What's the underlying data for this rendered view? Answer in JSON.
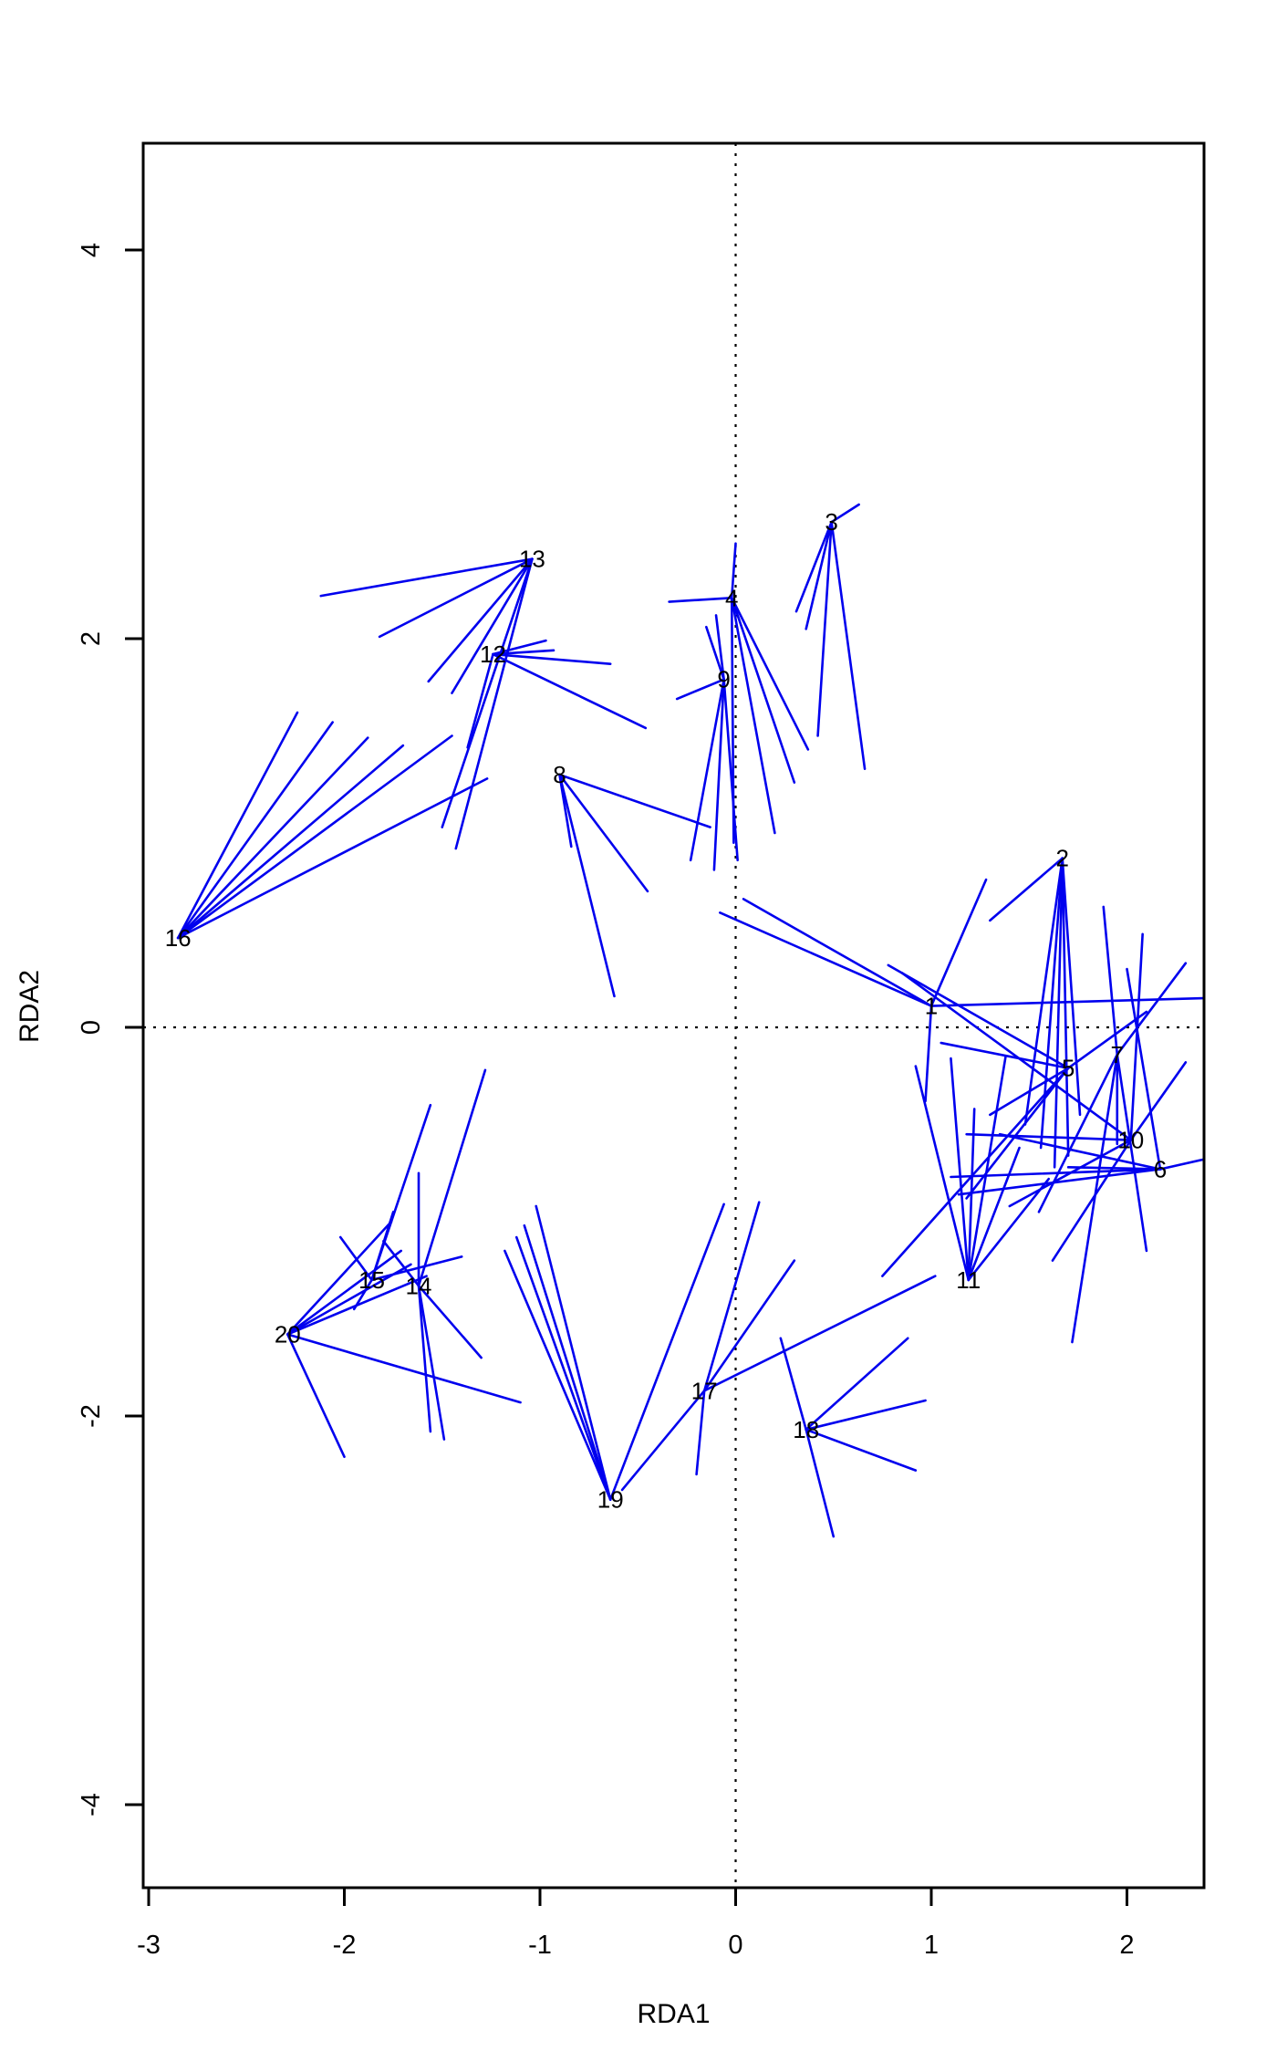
{
  "chart_data": {
    "type": "scatter",
    "subtype": "ordination-spider-plot",
    "title": "",
    "xlabel": "RDA1",
    "ylabel": "RDA2",
    "xlim": [
      -3.03,
      2.39
    ],
    "ylim": [
      -4.43,
      4.55
    ],
    "x_ticks": [
      -3,
      -2,
      -1,
      0,
      1,
      2
    ],
    "y_ticks": [
      -4,
      -2,
      0,
      2,
      4
    ],
    "grid": false,
    "reference_lines": {
      "horizontal_y": 0,
      "vertical_x": 0,
      "style": "dotted",
      "color": "#000000"
    },
    "line_color": "#0000EE",
    "label_color": "#000000",
    "frame_color": "#000000",
    "centroids": [
      {
        "id": "1",
        "x": 1.0,
        "y": 0.11,
        "legs": [
          [
            -0.08,
            0.59
          ],
          [
            0.04,
            0.66
          ],
          [
            1.28,
            0.76
          ],
          [
            0.97,
            -0.38
          ],
          [
            2.39,
            0.15
          ]
        ]
      },
      {
        "id": "2",
        "x": 1.67,
        "y": 0.87,
        "legs": [
          [
            1.48,
            -0.5
          ],
          [
            1.56,
            -0.62
          ],
          [
            1.63,
            -0.72
          ],
          [
            1.7,
            -0.66
          ],
          [
            1.76,
            -0.45
          ],
          [
            1.3,
            0.55
          ]
        ]
      },
      {
        "id": "3",
        "x": 0.49,
        "y": 2.6,
        "legs": [
          [
            0.63,
            2.69
          ],
          [
            0.31,
            2.14
          ],
          [
            0.36,
            2.05
          ],
          [
            0.42,
            1.5
          ],
          [
            0.66,
            1.33
          ]
        ]
      },
      {
        "id": "4",
        "x": -0.02,
        "y": 2.21,
        "legs": [
          [
            -0.34,
            2.19
          ],
          [
            0.0,
            2.49
          ],
          [
            0.37,
            1.43
          ],
          [
            0.3,
            1.26
          ],
          [
            0.2,
            1.0
          ],
          [
            -0.01,
            0.95
          ]
        ]
      },
      {
        "id": "5",
        "x": 1.7,
        "y": -0.21,
        "legs": [
          [
            0.78,
            0.32
          ],
          [
            1.05,
            -0.08
          ],
          [
            1.3,
            -0.45
          ],
          [
            1.18,
            -0.88
          ],
          [
            0.75,
            -1.28
          ],
          [
            2.1,
            0.08
          ]
        ]
      },
      {
        "id": "6",
        "x": 2.17,
        "y": -0.73,
        "legs": [
          [
            1.1,
            -0.77
          ],
          [
            1.14,
            -0.86
          ],
          [
            1.35,
            -0.55
          ],
          [
            2.39,
            -0.68
          ],
          [
            1.7,
            -0.72
          ],
          [
            2.0,
            0.3
          ]
        ]
      },
      {
        "id": "7",
        "x": 1.95,
        "y": -0.14,
        "legs": [
          [
            1.88,
            0.62
          ],
          [
            2.3,
            0.33
          ],
          [
            2.1,
            -1.15
          ],
          [
            1.72,
            -1.62
          ],
          [
            1.55,
            -0.95
          ],
          [
            1.95,
            -0.6
          ]
        ]
      },
      {
        "id": "8",
        "x": -0.9,
        "y": 1.3,
        "legs": [
          [
            -0.62,
            0.16
          ],
          [
            -0.84,
            0.93
          ],
          [
            -0.13,
            1.03
          ],
          [
            -0.45,
            0.7
          ]
        ]
      },
      {
        "id": "9",
        "x": -0.06,
        "y": 1.79,
        "legs": [
          [
            -0.3,
            1.69
          ],
          [
            -0.23,
            0.86
          ],
          [
            -0.11,
            0.81
          ],
          [
            0.01,
            0.86
          ],
          [
            -0.1,
            2.12
          ],
          [
            -0.15,
            2.06
          ]
        ]
      },
      {
        "id": "10",
        "x": 2.02,
        "y": -0.58,
        "legs": [
          [
            0.85,
            0.28
          ],
          [
            2.08,
            0.48
          ],
          [
            2.3,
            -0.18
          ],
          [
            1.62,
            -1.2
          ],
          [
            1.18,
            -0.55
          ],
          [
            1.4,
            -0.92
          ]
        ]
      },
      {
        "id": "11",
        "x": 1.19,
        "y": -1.3,
        "legs": [
          [
            0.92,
            -0.2
          ],
          [
            1.1,
            -0.16
          ],
          [
            1.22,
            -0.42
          ],
          [
            1.45,
            -0.62
          ],
          [
            1.6,
            -0.78
          ],
          [
            1.38,
            -0.15
          ]
        ]
      },
      {
        "id": "12",
        "x": -1.24,
        "y": 1.92,
        "legs": [
          [
            -0.97,
            1.99
          ],
          [
            -0.93,
            1.94
          ],
          [
            -0.64,
            1.87
          ],
          [
            -0.46,
            1.54
          ],
          [
            -1.37,
            1.44
          ]
        ]
      },
      {
        "id": "13",
        "x": -1.04,
        "y": 2.41,
        "legs": [
          [
            -2.12,
            2.22
          ],
          [
            -1.82,
            2.01
          ],
          [
            -1.57,
            1.78
          ],
          [
            -1.45,
            1.72
          ],
          [
            -1.43,
            0.92
          ],
          [
            -1.5,
            1.03
          ]
        ]
      },
      {
        "id": "14",
        "x": -1.62,
        "y": -1.33,
        "legs": [
          [
            -1.28,
            -0.22
          ],
          [
            -1.56,
            -2.08
          ],
          [
            -1.49,
            -2.12
          ],
          [
            -1.3,
            -1.7
          ],
          [
            -1.8,
            -1.1
          ],
          [
            -1.62,
            -0.75
          ]
        ]
      },
      {
        "id": "15",
        "x": -1.86,
        "y": -1.3,
        "legs": [
          [
            -1.56,
            -0.4
          ],
          [
            -1.75,
            -0.95
          ],
          [
            -2.02,
            -1.08
          ],
          [
            -1.4,
            -1.18
          ],
          [
            -1.95,
            -1.45
          ]
        ]
      },
      {
        "id": "16",
        "x": -2.85,
        "y": 0.46,
        "legs": [
          [
            -2.24,
            1.62
          ],
          [
            -2.06,
            1.57
          ],
          [
            -1.88,
            1.49
          ],
          [
            -1.7,
            1.45
          ],
          [
            -1.45,
            1.5
          ],
          [
            -1.27,
            1.28
          ]
        ]
      },
      {
        "id": "17",
        "x": -0.16,
        "y": -1.87,
        "legs": [
          [
            0.12,
            -0.9
          ],
          [
            0.3,
            -1.2
          ],
          [
            1.02,
            -1.28
          ],
          [
            -0.58,
            -2.38
          ],
          [
            -0.2,
            -2.3
          ]
        ]
      },
      {
        "id": "18",
        "x": 0.36,
        "y": -2.07,
        "legs": [
          [
            0.23,
            -1.6
          ],
          [
            0.88,
            -1.6
          ],
          [
            0.97,
            -1.92
          ],
          [
            0.92,
            -2.28
          ],
          [
            0.5,
            -2.62
          ]
        ]
      },
      {
        "id": "19",
        "x": -0.64,
        "y": -2.43,
        "legs": [
          [
            -1.02,
            -0.92
          ],
          [
            -1.08,
            -1.02
          ],
          [
            -1.12,
            -1.08
          ],
          [
            -1.18,
            -1.15
          ],
          [
            -0.06,
            -0.91
          ]
        ]
      },
      {
        "id": "20",
        "x": -2.29,
        "y": -1.58,
        "legs": [
          [
            -1.76,
            -1.0
          ],
          [
            -1.71,
            -1.15
          ],
          [
            -1.66,
            -1.22
          ],
          [
            -1.58,
            -1.28
          ],
          [
            -1.1,
            -1.93
          ],
          [
            -2.0,
            -2.21
          ]
        ]
      }
    ]
  }
}
